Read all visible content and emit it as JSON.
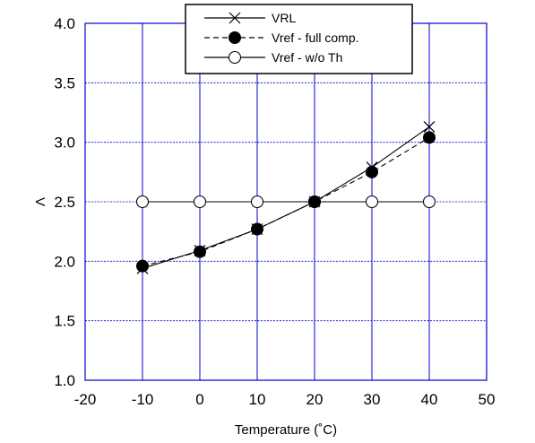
{
  "chart_data": {
    "type": "line",
    "title": "",
    "xlabel": "Temperature (˚C)",
    "ylabel": "V",
    "xlim": [
      -20,
      50
    ],
    "ylim": [
      1.0,
      4.0
    ],
    "x_ticks": [
      "-20",
      "-10",
      "0",
      "10",
      "20",
      "30",
      "40",
      "50"
    ],
    "y_ticks": [
      "1.0",
      "1.5",
      "2.0",
      "2.5",
      "3.0",
      "3.5",
      "4.0"
    ],
    "grid": true,
    "legend_position": "top-center",
    "colors": {
      "grid": "#0000cc",
      "series": "#000000"
    },
    "series": [
      {
        "name": "VRL",
        "marker": "x",
        "line": "solid",
        "x": [
          -10,
          0,
          10,
          20,
          30,
          40
        ],
        "y": [
          1.94,
          2.09,
          2.27,
          2.5,
          2.79,
          3.13
        ]
      },
      {
        "name": "Vref - full comp.",
        "marker": "filled-circle",
        "line": "dashed",
        "x": [
          -10,
          0,
          10,
          20,
          30,
          40
        ],
        "y": [
          1.96,
          2.08,
          2.27,
          2.5,
          2.75,
          3.04
        ]
      },
      {
        "name": "Vref - w/o Th",
        "marker": "open-circle",
        "line": "solid",
        "x": [
          -10,
          0,
          10,
          20,
          30,
          40
        ],
        "y": [
          2.5,
          2.5,
          2.5,
          2.5,
          2.5,
          2.5
        ]
      }
    ]
  }
}
